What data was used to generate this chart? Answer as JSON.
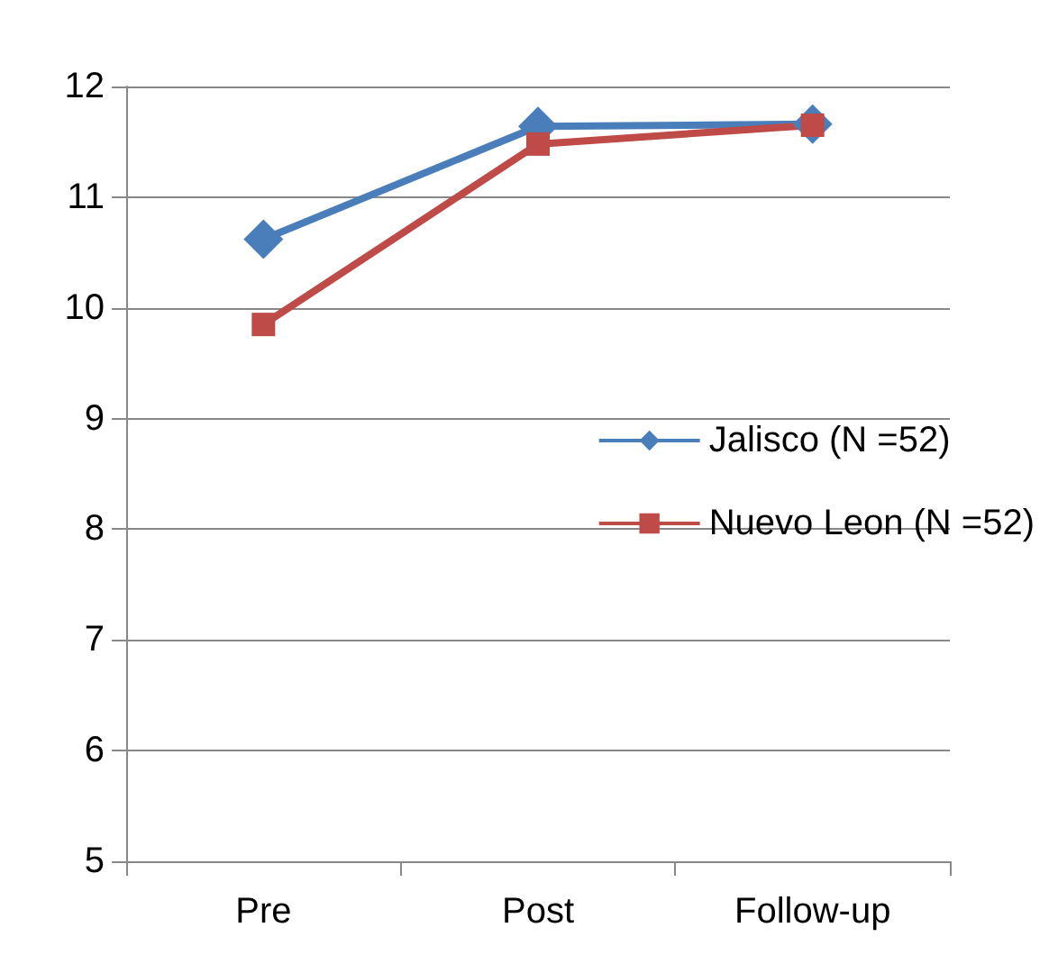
{
  "chart_data": {
    "type": "line",
    "categories": [
      "Pre",
      "Post",
      "Follow-up"
    ],
    "series": [
      {
        "name": "Jalisco (N =52)",
        "color": "#4a7ebb",
        "marker": "diamond",
        "values": [
          10.62,
          11.64,
          11.66
        ]
      },
      {
        "name": "Nuevo Leon (N =52)",
        "color": "#be4b48",
        "marker": "square",
        "values": [
          9.85,
          11.48,
          11.65
        ]
      }
    ],
    "ylim": [
      5,
      12
    ],
    "yticks": [
      5,
      6,
      7,
      8,
      9,
      10,
      11,
      12
    ],
    "grid": "y",
    "legend": "right"
  }
}
